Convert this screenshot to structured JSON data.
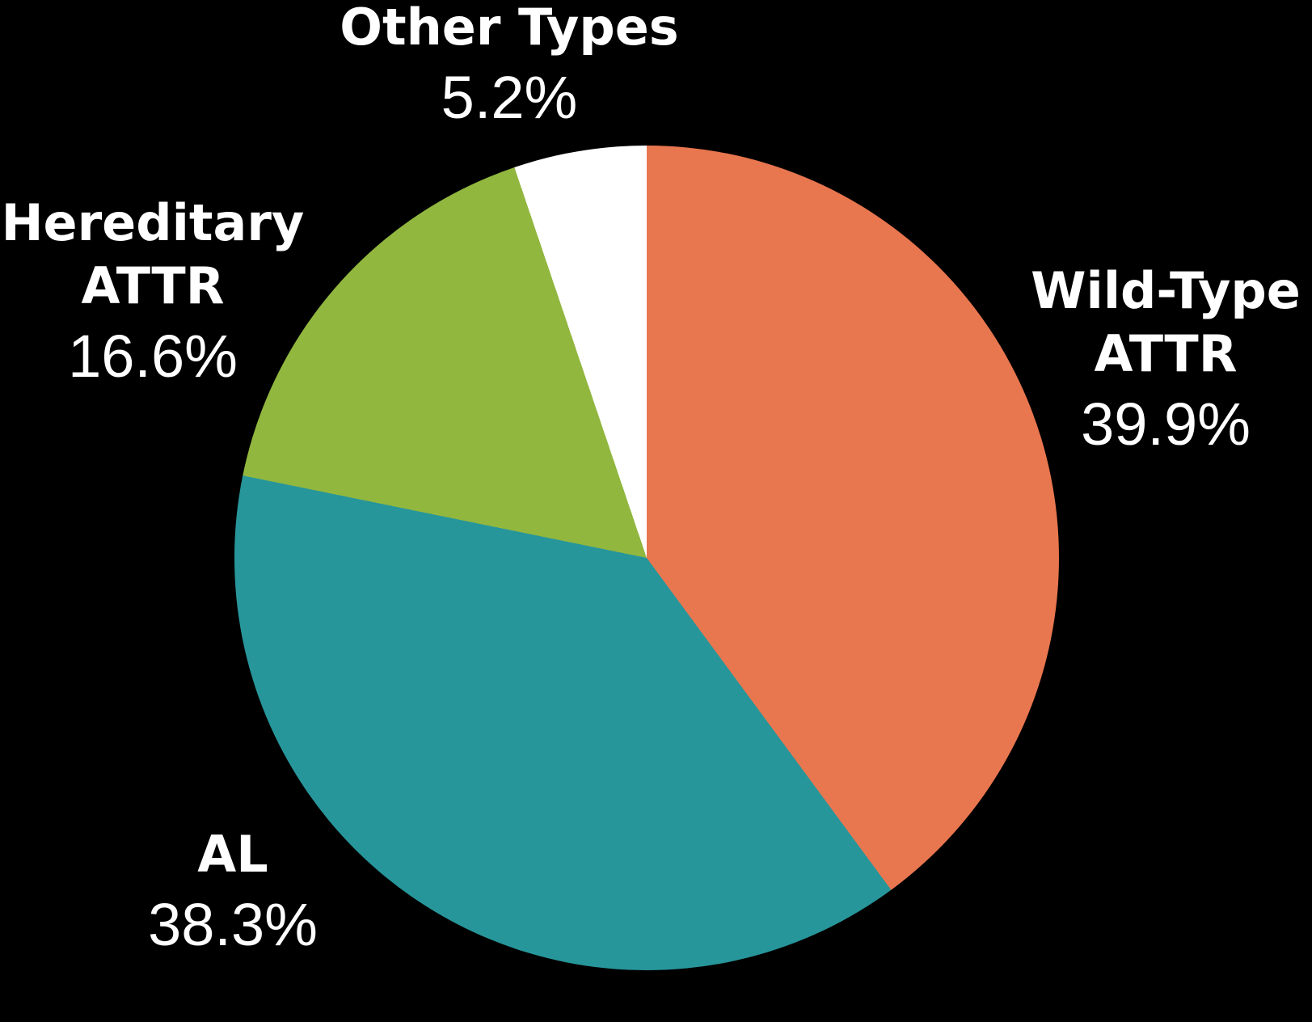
{
  "background": "#000000",
  "text_color": "#FFFFFF",
  "chart_data": {
    "type": "pie",
    "title": "",
    "direction": "clockwise",
    "start_angle_deg": 0,
    "legend_position": "outside-labels",
    "slices": [
      {
        "label": "Wild-Type ATTR",
        "value": 39.9,
        "percent_label": "39.9%",
        "color": "#E8764F"
      },
      {
        "label": "AL",
        "value": 38.3,
        "percent_label": "38.3%",
        "color": "#27969B"
      },
      {
        "label": "Hereditary ATTR",
        "value": 16.6,
        "percent_label": "16.6%",
        "color": "#91B73F"
      },
      {
        "label": "Other Types",
        "value": 5.2,
        "percent_label": "5.2%",
        "color": "#FFFFFF"
      }
    ]
  },
  "callouts": {
    "wild": {
      "line1": "Wild-Type",
      "line2": "ATTR",
      "pct": "39.9%"
    },
    "al": {
      "line1": "AL",
      "pct": "38.3%"
    },
    "hereditary": {
      "line1": "Hereditary",
      "line2": "ATTR",
      "pct": "16.6%"
    },
    "other": {
      "line1": "Other Types",
      "pct": "5.2%"
    }
  }
}
